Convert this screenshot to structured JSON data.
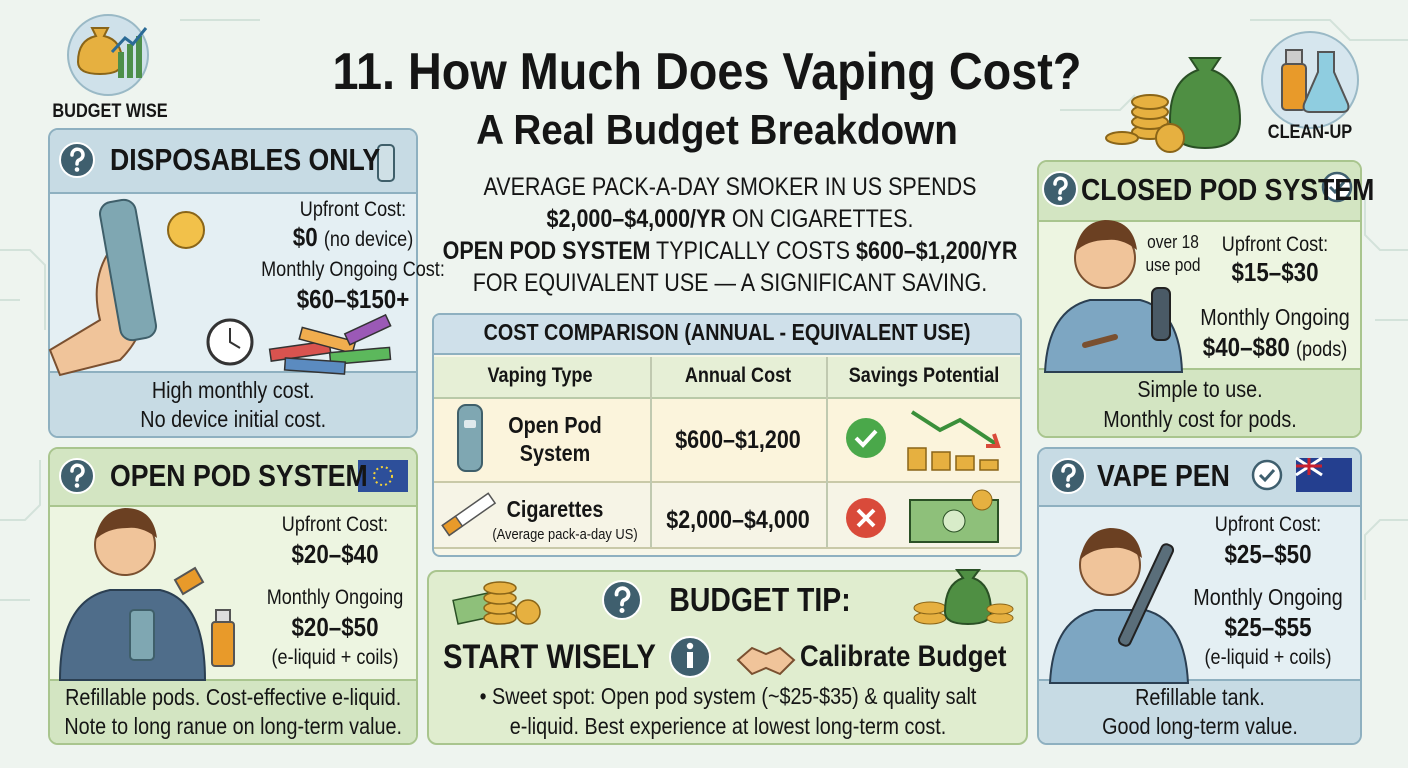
{
  "badges": {
    "left": "BUDGET WISE",
    "right": "CLEAN-UP"
  },
  "header": {
    "title": "11. How Much Does Vaping Cost?",
    "subtitle": "A Real Budget Breakdown"
  },
  "intro": [
    [
      {
        "text": "AVERAGE PACK-A-DAY SMOKER IN US SPENDS",
        "bold": false
      }
    ],
    [
      {
        "text": "$2,000–$4,000/YR",
        "bold": true
      },
      {
        "text": " ON CIGARETTES.",
        "bold": false
      }
    ],
    [
      {
        "text": "OPEN POD SYSTEM",
        "bold": true
      },
      {
        "text": " TYPICALLY COSTS ",
        "bold": false
      },
      {
        "text": "$600–$1,200/YR",
        "bold": true
      }
    ],
    [
      {
        "text": "FOR EQUIVALENT USE — A SIGNIFICANT SAVING.",
        "bold": false
      }
    ]
  ],
  "cards": {
    "disposables": {
      "title": "DISPOSABLES ONLY",
      "upfront_label": "Upfront Cost:",
      "upfront": "$0",
      "upfront_note": "(no device)",
      "monthly_label": "Monthly Ongoing Cost:",
      "monthly": "$60–$150+",
      "footer": [
        "High monthly cost.",
        "No device initial cost."
      ]
    },
    "open_pod": {
      "title": "OPEN POD SYSTEM",
      "upfront_label": "Upfront Cost:",
      "upfront": "$20–$40",
      "monthly_label": "Monthly Ongoing",
      "monthly": "$20–$50",
      "monthly_note": "(e-liquid + coils)",
      "footer": [
        "Refillable pods. Cost-effective e-liquid.",
        "Note to long ranue on long-term value."
      ]
    },
    "closed_pod": {
      "title": "CLOSED POD SYSTEM",
      "side_label": [
        "over 18",
        "use pod"
      ],
      "upfront_label": "Upfront Cost:",
      "upfront": "$15–$30",
      "monthly_label": "Monthly Ongoing",
      "monthly": "$40–$80",
      "monthly_note": "(pods)",
      "footer": [
        "Simple to use.",
        "Monthly cost for pods."
      ]
    },
    "vape_pen": {
      "title": "VAPE PEN",
      "upfront_label": "Upfront Cost:",
      "upfront": "$25–$50",
      "monthly_label": "Monthly Ongoing",
      "monthly": "$25–$55",
      "monthly_note": "(e-liquid + coils)",
      "footer": [
        "Refillable tank.",
        "Good long-term value."
      ]
    }
  },
  "table": {
    "title": "COST COMPARISON (ANNUAL - EQUIVALENT USE)",
    "headers": [
      "Vaping Type",
      "Annual Cost",
      "Savings Potential"
    ],
    "rows": [
      {
        "type": [
          "Open Pod",
          "System"
        ],
        "annual": "$600–$1,200"
      },
      {
        "type": [
          "Cigarettes"
        ],
        "note": "(Average pack-a-day US)",
        "annual": "$2,000–$4,000"
      }
    ]
  },
  "budget_tip": {
    "title": "BUDGET TIP:",
    "left": "START WISELY",
    "right": "Calibrate Budget",
    "bullet": [
      "• Sweet spot: Open pod system (~$25-$35) & quality salt",
      "e-liquid. Best experience at lowest long-term cost."
    ]
  }
}
